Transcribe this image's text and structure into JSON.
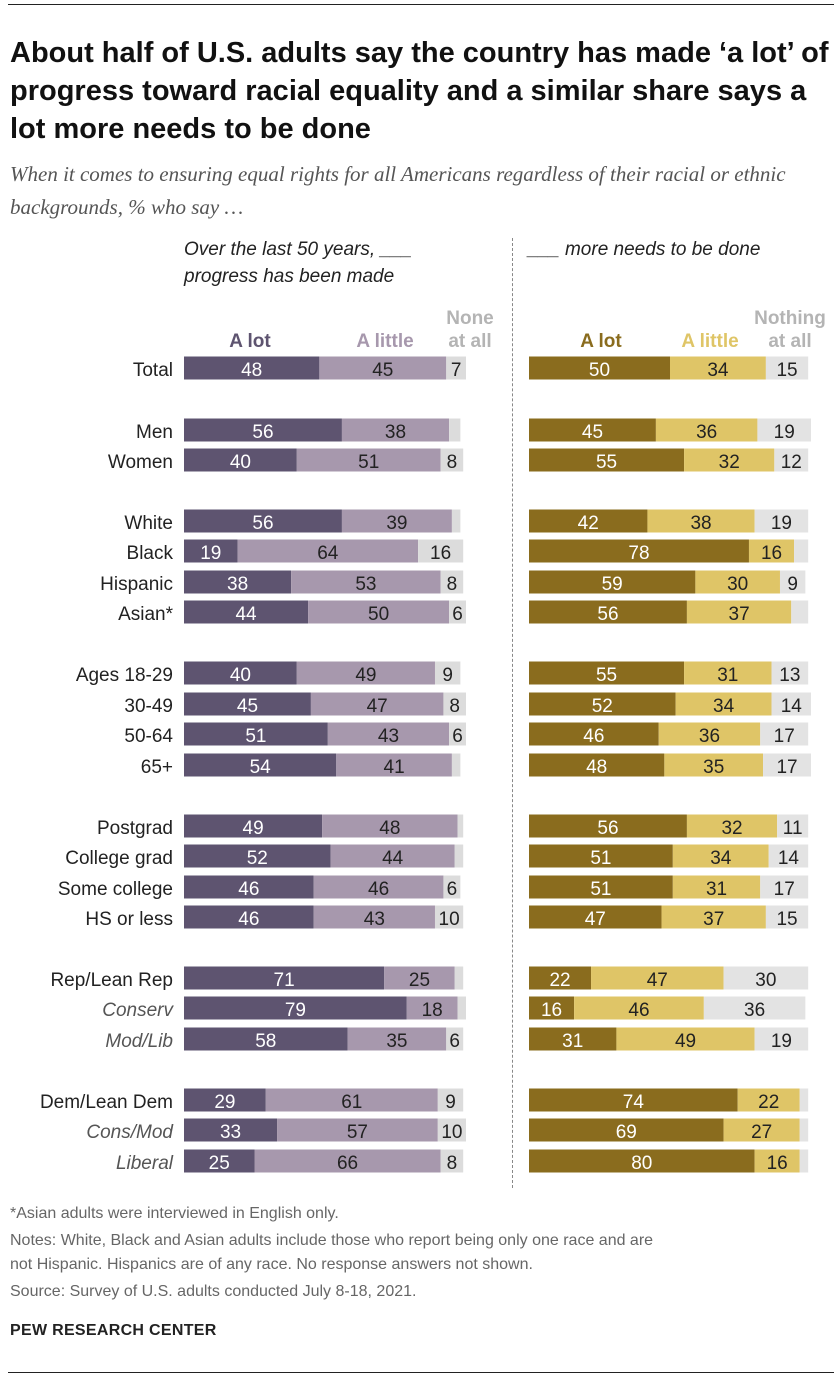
{
  "title": "About half of U.S. adults say the country has made ‘a lot’ of progress toward racial equality and a similar share says a lot more needs to be done",
  "subtitle": "When it comes to ensuring equal rights for all Americans regardless of their racial or ethnic backgrounds, % who say …",
  "panels": {
    "left_header_line1": "Over the last 50 years, ___",
    "left_header_line2": "progress has been made",
    "right_header": "___ more needs to be done"
  },
  "legend": {
    "left": {
      "a_lot": "A lot",
      "a_little": "A little",
      "none_line1": "None",
      "none_line2": "at all"
    },
    "right": {
      "a_lot": "A lot",
      "a_little": "A little",
      "nothing_line1": "Nothing",
      "nothing_line2": "at all"
    }
  },
  "colors": {
    "progress_a_lot": "#5e5470",
    "progress_a_little": "#a798ad",
    "progress_none": "#dcdcdc",
    "done_a_lot": "#8a6c1e",
    "done_a_little": "#dfc567",
    "done_nothing": "#e3e3e3",
    "legend_none_text": "#b4b4b4"
  },
  "chart_data": [
    {
      "type": "bar",
      "orientation": "horizontal",
      "stacked": true,
      "title": "Over the last 50 years, ___ progress has been made",
      "categories": [
        "Total",
        "Men",
        "Women",
        "White",
        "Black",
        "Hispanic",
        "Asian*",
        "Ages 18-29",
        "30-49",
        "50-64",
        "65+",
        "Postgrad",
        "College grad",
        "Some college",
        "HS or less",
        "Rep/Lean Rep",
        "Conserv",
        "Mod/Lib",
        "Dem/Lean Dem",
        "Cons/Mod",
        "Liberal"
      ],
      "series": [
        {
          "name": "A lot",
          "values": [
            48,
            56,
            40,
            56,
            19,
            38,
            44,
            40,
            45,
            51,
            54,
            49,
            52,
            46,
            46,
            71,
            79,
            58,
            29,
            33,
            25
          ]
        },
        {
          "name": "A little",
          "values": [
            45,
            38,
            51,
            39,
            64,
            53,
            50,
            49,
            47,
            43,
            41,
            48,
            44,
            46,
            43,
            25,
            18,
            35,
            61,
            57,
            66
          ]
        },
        {
          "name": "None at all",
          "values": [
            7,
            4,
            8,
            3,
            16,
            8,
            6,
            9,
            8,
            6,
            3,
            2,
            3,
            6,
            10,
            3,
            3,
            6,
            9,
            10,
            8
          ],
          "labels": [
            "7",
            "",
            "8",
            "",
            "16",
            "8",
            "6",
            "9",
            "8",
            "6",
            "",
            "",
            "",
            "6",
            "10",
            "",
            "",
            "6",
            "9",
            "10",
            "8"
          ]
        }
      ],
      "xlim": [
        0,
        100
      ]
    },
    {
      "type": "bar",
      "orientation": "horizontal",
      "stacked": true,
      "title": "___ more needs to be done",
      "categories": [
        "Total",
        "Men",
        "Women",
        "White",
        "Black",
        "Hispanic",
        "Asian*",
        "Ages 18-29",
        "30-49",
        "50-64",
        "65+",
        "Postgrad",
        "College grad",
        "Some college",
        "HS or less",
        "Rep/Lean Rep",
        "Conserv",
        "Mod/Lib",
        "Dem/Lean Dem",
        "Cons/Mod",
        "Liberal"
      ],
      "series": [
        {
          "name": "A lot",
          "values": [
            50,
            45,
            55,
            42,
            78,
            59,
            56,
            55,
            52,
            46,
            48,
            56,
            51,
            51,
            47,
            22,
            16,
            31,
            74,
            69,
            80
          ]
        },
        {
          "name": "A little",
          "values": [
            34,
            36,
            32,
            38,
            16,
            30,
            37,
            31,
            34,
            36,
            35,
            32,
            34,
            31,
            37,
            47,
            46,
            49,
            22,
            27,
            16
          ]
        },
        {
          "name": "Nothing at all",
          "values": [
            15,
            19,
            12,
            19,
            5,
            9,
            6,
            13,
            14,
            17,
            17,
            11,
            14,
            17,
            15,
            30,
            36,
            19,
            3,
            3,
            3
          ],
          "labels": [
            "15",
            "19",
            "12",
            "19",
            "",
            "9",
            "",
            "13",
            "14",
            "17",
            "17",
            "11",
            "14",
            "17",
            "15",
            "30",
            "36",
            "19",
            "",
            "",
            ""
          ]
        }
      ],
      "xlim": [
        0,
        100
      ]
    }
  ],
  "footnotes": {
    "asian_note": "*Asian adults were interviewed in English only.",
    "notes_line1": "Notes: White, Black and Asian adults include those who report being only one race and are",
    "notes_line2": "not Hispanic. Hispanics are of any race. No response answers not shown.",
    "source": "Source: Survey of U.S. adults conducted July 8-18, 2021."
  },
  "brand": "PEW RESEARCH CENTER"
}
